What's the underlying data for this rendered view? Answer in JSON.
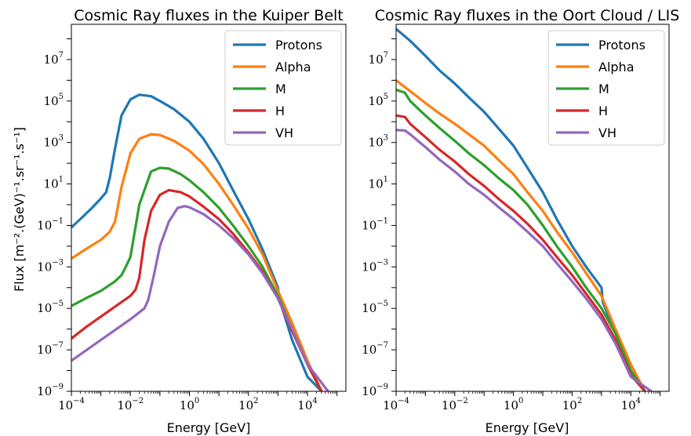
{
  "chart_data": [
    {
      "type": "line",
      "title": "Cosmic Ray fluxes in the Kuiper Belt",
      "xlabel": "Energy [GeV]",
      "ylabel": "Flux [m⁻².(GeV)⁻¹.sr⁻¹.s⁻¹]",
      "xscale": "log",
      "yscale": "log",
      "xlim": [
        0.0001,
        200000
      ],
      "ylim": [
        1e-09,
        500000000.0
      ],
      "xticks": [
        {
          "base": "10",
          "exp": "−4"
        },
        {
          "base": "10",
          "exp": "−2"
        },
        {
          "base": "10",
          "exp": "0"
        },
        {
          "base": "10",
          "exp": "2"
        },
        {
          "base": "10",
          "exp": "4"
        }
      ],
      "yticks": [
        {
          "base": "10",
          "exp": "−9"
        },
        {
          "base": "10",
          "exp": "−7"
        },
        {
          "base": "10",
          "exp": "−5"
        },
        {
          "base": "10",
          "exp": "−3"
        },
        {
          "base": "10",
          "exp": "−1"
        },
        {
          "base": "10",
          "exp": "1"
        },
        {
          "base": "10",
          "exp": "3"
        },
        {
          "base": "10",
          "exp": "5"
        },
        {
          "base": "10",
          "exp": "7"
        }
      ],
      "legend_position": "top-right",
      "series": [
        {
          "name": "Protons",
          "color": "#1f77b4",
          "x": [
            0.0001,
            0.0002,
            0.0005,
            0.001,
            0.0015,
            0.002,
            0.003,
            0.005,
            0.01,
            0.02,
            0.05,
            0.1,
            0.3,
            1,
            3,
            10,
            30,
            100,
            300,
            1000,
            1100,
            3000,
            10000,
            30000
          ],
          "y": [
            0.08,
            0.2,
            0.7,
            2.0,
            4.0,
            20,
            500,
            20000,
            120000,
            200000,
            170000,
            100000,
            40000,
            10000,
            1500,
            100,
            5,
            0.2,
            0.007,
            0.0001,
            3e-05,
            3e-07,
            5e-09,
            1e-09
          ]
        },
        {
          "name": "Alpha",
          "color": "#ff7f0e",
          "x": [
            0.0001,
            0.0003,
            0.001,
            0.002,
            0.003,
            0.005,
            0.01,
            0.02,
            0.05,
            0.1,
            0.3,
            1,
            3,
            10,
            30,
            100,
            300,
            1000,
            3000,
            10000,
            30000
          ],
          "y": [
            0.0025,
            0.007,
            0.02,
            0.05,
            0.15,
            7,
            300,
            1500,
            2500,
            2300,
            1200,
            400,
            90,
            10,
            1,
            0.07,
            0.004,
            7e-05,
            2e-06,
            3e-08,
            1e-09
          ]
        },
        {
          "name": "M",
          "color": "#2ca02c",
          "x": [
            0.0001,
            0.0003,
            0.001,
            0.003,
            0.005,
            0.007,
            0.01,
            0.02,
            0.05,
            0.1,
            0.2,
            0.5,
            1,
            3,
            10,
            30,
            100,
            300,
            1000,
            3000,
            10000,
            30000
          ],
          "y": [
            1.3e-05,
            3e-05,
            7e-05,
            0.0002,
            0.0004,
            0.001,
            0.003,
            1,
            40,
            60,
            55,
            30,
            15,
            4,
            0.7,
            0.1,
            0.01,
            0.001,
            4e-05,
            1e-06,
            2e-08,
            1e-09
          ]
        },
        {
          "name": "H",
          "color": "#d62728",
          "x": [
            0.0001,
            0.0003,
            0.001,
            0.003,
            0.01,
            0.015,
            0.02,
            0.03,
            0.05,
            0.1,
            0.2,
            0.5,
            1,
            3,
            10,
            30,
            100,
            300,
            1000,
            3000,
            10000,
            30000
          ],
          "y": [
            3.5e-07,
            1.2e-06,
            4e-06,
            1.2e-05,
            4e-05,
            8e-05,
            0.0003,
            0.02,
            0.5,
            3,
            5,
            4,
            2.5,
            0.8,
            0.2,
            0.04,
            0.005,
            0.0006,
            3e-05,
            8e-07,
            2e-08,
            1e-09
          ]
        },
        {
          "name": "VH",
          "color": "#9467bd",
          "x": [
            0.0001,
            0.0003,
            0.001,
            0.003,
            0.01,
            0.03,
            0.04,
            0.06,
            0.1,
            0.2,
            0.4,
            0.7,
            1,
            3,
            10,
            30,
            100,
            300,
            1000,
            3000,
            10000,
            50000
          ],
          "y": [
            3e-08,
            9e-08,
            3e-07,
            9e-07,
            3e-06,
            1e-05,
            2.5e-05,
            0.0003,
            0.01,
            0.15,
            0.7,
            0.85,
            0.75,
            0.35,
            0.1,
            0.025,
            0.004,
            0.0005,
            3e-05,
            1e-06,
            2e-08,
            1e-09
          ]
        }
      ]
    },
    {
      "type": "line",
      "title": "Cosmic Ray fluxes in the Oort Cloud / LIS",
      "xlabel": "Energy [GeV]",
      "ylabel": "",
      "xscale": "log",
      "yscale": "log",
      "xlim": [
        0.0001,
        200000
      ],
      "ylim": [
        1e-09,
        500000000.0
      ],
      "xticks": [
        {
          "base": "10",
          "exp": "−4"
        },
        {
          "base": "10",
          "exp": "−2"
        },
        {
          "base": "10",
          "exp": "0"
        },
        {
          "base": "10",
          "exp": "2"
        },
        {
          "base": "10",
          "exp": "4"
        }
      ],
      "yticks": [
        {
          "base": "10",
          "exp": "−9"
        },
        {
          "base": "10",
          "exp": "−7"
        },
        {
          "base": "10",
          "exp": "−5"
        },
        {
          "base": "10",
          "exp": "−3"
        },
        {
          "base": "10",
          "exp": "−1"
        },
        {
          "base": "10",
          "exp": "1"
        },
        {
          "base": "10",
          "exp": "3"
        },
        {
          "base": "10",
          "exp": "5"
        },
        {
          "base": "10",
          "exp": "7"
        }
      ],
      "legend_position": "top-right",
      "series": [
        {
          "name": "Protons",
          "color": "#1f77b4",
          "x": [
            0.0001,
            0.0003,
            0.001,
            0.003,
            0.01,
            0.03,
            0.1,
            0.3,
            1,
            3,
            10,
            30,
            100,
            300,
            1000,
            1100,
            3000,
            10000,
            30000
          ],
          "y": [
            300000000,
            80000000,
            15000000,
            3000000,
            700000,
            150000,
            30000,
            5000,
            700,
            60,
            4,
            0.2,
            0.01,
            0.001,
            0.0001,
            2e-05,
            6e-07,
            1e-08,
            1e-09
          ]
        },
        {
          "name": "Alpha",
          "color": "#ff7f0e",
          "x": [
            0.0001,
            0.0003,
            0.001,
            0.003,
            0.01,
            0.03,
            0.1,
            0.3,
            1,
            3,
            10,
            30,
            100,
            300,
            1000,
            3000,
            10000,
            30000
          ],
          "y": [
            1000000,
            300000,
            80000,
            25000,
            8000,
            2500,
            700,
            150,
            30,
            4,
            0.5,
            0.05,
            0.005,
            0.0005,
            4e-05,
            1e-06,
            2e-08,
            1e-09
          ]
        },
        {
          "name": "M",
          "color": "#2ca02c",
          "x": [
            0.0001,
            0.0002,
            0.0003,
            0.001,
            0.003,
            0.01,
            0.03,
            0.1,
            0.3,
            1,
            3,
            10,
            30,
            100,
            300,
            1000,
            3000,
            10000,
            30000
          ],
          "y": [
            350000,
            250000,
            100000,
            20000,
            5000,
            1200,
            300,
            80,
            20,
            5,
            1,
            0.1,
            0.01,
            0.001,
            0.0001,
            1e-05,
            6e-07,
            1e-08,
            1e-09
          ]
        },
        {
          "name": "H",
          "color": "#d62728",
          "x": [
            0.0001,
            0.0002,
            0.0003,
            0.001,
            0.003,
            0.01,
            0.03,
            0.1,
            0.3,
            1,
            3,
            10,
            30,
            100,
            300,
            1000,
            3000,
            10000,
            30000
          ],
          "y": [
            20000,
            17000,
            8000,
            1800,
            450,
            120,
            30,
            8,
            2,
            0.5,
            0.12,
            0.02,
            0.003,
            0.0004,
            5e-05,
            5e-06,
            3e-07,
            6e-09,
            1e-09
          ]
        },
        {
          "name": "VH",
          "color": "#9467bd",
          "x": [
            0.0001,
            0.0002,
            0.0003,
            0.001,
            0.003,
            0.01,
            0.03,
            0.1,
            0.3,
            1,
            3,
            10,
            30,
            100,
            300,
            1000,
            3000,
            10000,
            50000
          ],
          "y": [
            4000,
            3800,
            2500,
            600,
            150,
            40,
            10,
            3,
            0.8,
            0.2,
            0.05,
            0.01,
            0.0015,
            0.0002,
            3e-05,
            3e-06,
            2e-07,
            5e-09,
            1e-09
          ]
        }
      ]
    }
  ]
}
